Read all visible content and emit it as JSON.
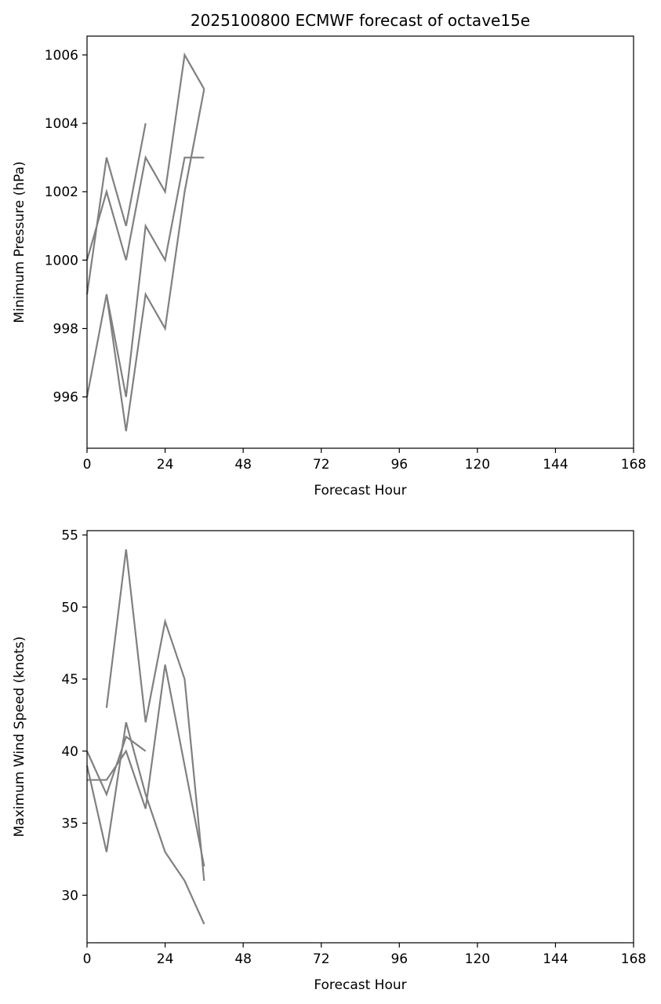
{
  "chart_data": [
    {
      "type": "line",
      "title": "2025100800 ECMWF forecast of octave15e",
      "xlabel": "Forecast Hour",
      "ylabel": "Minimum Pressure (hPa)",
      "xlim": [
        0,
        168
      ],
      "ylim": [
        994.5,
        1006.55
      ],
      "xticks": [
        0,
        24,
        48,
        72,
        96,
        120,
        144,
        168
      ],
      "yticks": [
        996,
        998,
        1000,
        1002,
        1004,
        1006
      ],
      "grid": false,
      "line_color": "#808080",
      "series": [
        {
          "x": [
            0,
            6,
            12,
            18,
            24,
            30,
            36
          ],
          "y": [
            1000,
            1002,
            1000,
            1003,
            1002,
            1006,
            1005
          ]
        },
        {
          "x": [
            0,
            6,
            12,
            18
          ],
          "y": [
            999,
            1003,
            1001,
            1004
          ]
        },
        {
          "x": [
            0,
            6,
            12,
            18,
            24,
            30,
            36
          ],
          "y": [
            996,
            999,
            996,
            1001,
            1000,
            1003,
            1003
          ]
        },
        {
          "x": [
            6,
            12,
            18,
            24,
            30,
            36
          ],
          "y": [
            999,
            995,
            999,
            998,
            1002,
            1005
          ]
        }
      ]
    },
    {
      "type": "line",
      "title": "",
      "xlabel": "Forecast Hour",
      "ylabel": "Maximum Wind Speed (knots)",
      "xlim": [
        0,
        168
      ],
      "ylim": [
        26.7,
        55.3
      ],
      "xticks": [
        0,
        24,
        48,
        72,
        96,
        120,
        144,
        168
      ],
      "yticks": [
        30,
        35,
        40,
        45,
        50,
        55
      ],
      "grid": false,
      "line_color": "#808080",
      "series": [
        {
          "x": [
            6,
            12,
            18,
            24,
            30,
            36
          ],
          "y": [
            43,
            54,
            42,
            49,
            45,
            31
          ]
        },
        {
          "x": [
            0,
            6,
            12,
            18
          ],
          "y": [
            40,
            37,
            41,
            40
          ]
        },
        {
          "x": [
            0,
            6,
            12,
            18,
            24,
            30,
            36
          ],
          "y": [
            38,
            38,
            40,
            36,
            46,
            39,
            32
          ]
        },
        {
          "x": [
            0,
            6,
            12,
            18,
            24,
            30,
            36
          ],
          "y": [
            39,
            33,
            42,
            37,
            33,
            31,
            28
          ]
        }
      ]
    }
  ]
}
